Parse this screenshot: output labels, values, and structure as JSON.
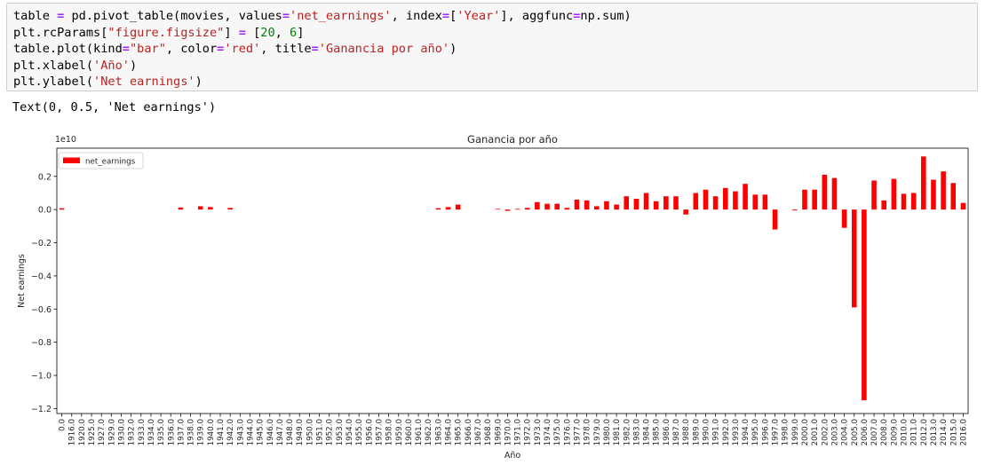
{
  "code_cell": {
    "lines": [
      [
        [
          "t",
          "table "
        ],
        [
          "o",
          "="
        ],
        [
          "t",
          " pd.pivot_table(movies, values"
        ],
        [
          "o",
          "="
        ],
        [
          "s",
          "'net_earnings'"
        ],
        [
          "t",
          ", index"
        ],
        [
          "o",
          "="
        ],
        [
          "t",
          "["
        ],
        [
          "s",
          "'Year'"
        ],
        [
          "t",
          "], aggfunc"
        ],
        [
          "o",
          "="
        ],
        [
          "t",
          "np.sum)"
        ]
      ],
      [
        [
          "t",
          "plt.rcParams["
        ],
        [
          "s",
          "\"figure.figsize\""
        ],
        [
          "t",
          "] "
        ],
        [
          "o",
          "="
        ],
        [
          "t",
          " ["
        ],
        [
          "n",
          "20"
        ],
        [
          "t",
          ", "
        ],
        [
          "n",
          "6"
        ],
        [
          "t",
          "]"
        ]
      ],
      [
        [
          "t",
          "table.plot(kind"
        ],
        [
          "o",
          "="
        ],
        [
          "s",
          "\"bar\""
        ],
        [
          "t",
          ", color"
        ],
        [
          "o",
          "="
        ],
        [
          "s",
          "'red'"
        ],
        [
          "t",
          ", title"
        ],
        [
          "o",
          "="
        ],
        [
          "s",
          "'Ganancia por año'"
        ],
        [
          "t",
          ")"
        ]
      ],
      [
        [
          "t",
          "plt.xlabel("
        ],
        [
          "s",
          "'Año'"
        ],
        [
          "t",
          ")"
        ]
      ],
      [
        [
          "t",
          "plt.ylabel("
        ],
        [
          "s",
          "'Net earnings'"
        ],
        [
          "t",
          ")"
        ]
      ]
    ]
  },
  "output": {
    "text": "Text(0, 0.5, 'Net earnings')"
  },
  "chart_data": {
    "type": "bar",
    "title": "Ganancia por año",
    "xlabel": "Año",
    "ylabel": "Net earnings",
    "scale_label": "1e10",
    "legend": {
      "label": "net_earnings",
      "position": "top-left"
    },
    "color": "#ff0000",
    "grid": false,
    "ylim": [
      -1.23,
      0.37
    ],
    "yticks": [
      0.2,
      0.0,
      -0.2,
      -0.4,
      -0.6,
      -0.8,
      -1.0,
      -1.2
    ],
    "ytick_labels": [
      "0.2",
      "0.0",
      "−0.2",
      "−0.4",
      "−0.6",
      "−0.8",
      "−1.0",
      "−1.2"
    ],
    "categories": [
      "0.0",
      "1916.0",
      "1920.0",
      "1925.0",
      "1927.0",
      "1929.0",
      "1930.0",
      "1932.0",
      "1933.0",
      "1934.0",
      "1935.0",
      "1936.0",
      "1937.0",
      "1938.0",
      "1939.0",
      "1940.0",
      "1941.0",
      "1942.0",
      "1943.0",
      "1944.0",
      "1945.0",
      "1946.0",
      "1947.0",
      "1948.0",
      "1949.0",
      "1950.0",
      "1951.0",
      "1952.0",
      "1953.0",
      "1954.0",
      "1955.0",
      "1956.0",
      "1957.0",
      "1958.0",
      "1959.0",
      "1960.0",
      "1961.0",
      "1962.0",
      "1963.0",
      "1964.0",
      "1965.0",
      "1966.0",
      "1967.0",
      "1968.0",
      "1969.0",
      "1970.0",
      "1971.0",
      "1972.0",
      "1973.0",
      "1974.0",
      "1975.0",
      "1976.0",
      "1977.0",
      "1978.0",
      "1979.0",
      "1980.0",
      "1981.0",
      "1982.0",
      "1983.0",
      "1984.0",
      "1985.0",
      "1986.0",
      "1987.0",
      "1988.0",
      "1989.0",
      "1990.0",
      "1991.0",
      "1992.0",
      "1993.0",
      "1994.0",
      "1995.0",
      "1996.0",
      "1997.0",
      "1998.0",
      "1999.0",
      "2000.0",
      "2001.0",
      "2002.0",
      "2003.0",
      "2004.0",
      "2005.0",
      "2006.0",
      "2007.0",
      "2008.0",
      "2009.0",
      "2010.0",
      "2011.0",
      "2012.0",
      "2013.0",
      "2014.0",
      "2015.0",
      "2016.0"
    ],
    "values": [
      0.008,
      0,
      0,
      0,
      0,
      0,
      0,
      0,
      0,
      0,
      0,
      0,
      0.012,
      0,
      0.02,
      0.015,
      0,
      0.01,
      0,
      0,
      0,
      0,
      0,
      0,
      0,
      0,
      0,
      0,
      0,
      0,
      0,
      0,
      0,
      0,
      0,
      0,
      0,
      0,
      0.008,
      0.015,
      0.03,
      0,
      0,
      0,
      0.004,
      -0.008,
      0.004,
      0.01,
      0.045,
      0.035,
      0.035,
      0.01,
      0.06,
      0.055,
      0.02,
      0.05,
      0.03,
      0.08,
      0.065,
      0.1,
      0.05,
      0.08,
      0.08,
      -0.03,
      0.1,
      0.12,
      0.08,
      0.13,
      0.11,
      0.155,
      0.09,
      0.09,
      -0.12,
      0,
      -0.005,
      0.12,
      0.12,
      0.21,
      0.19,
      -0.11,
      -0.59,
      -1.15,
      0.175,
      0.055,
      0.185,
      0.095,
      0.1,
      0.32,
      0.18,
      0.23,
      0.16,
      0.04
    ]
  }
}
